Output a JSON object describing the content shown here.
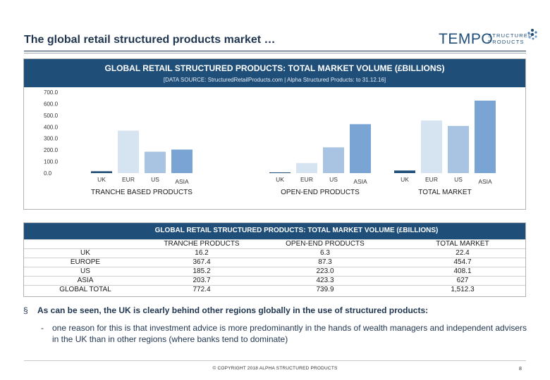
{
  "page": {
    "title": "The global retail structured products market …",
    "logo": {
      "word": "TEMPO",
      "sub_line1": "STRUCTURED",
      "sub_line2": "PRODUCTS"
    }
  },
  "chart_data": {
    "type": "bar",
    "title": "GLOBAL RETAIL STRUCTURED PRODUCTS: TOTAL MARKET VOLUME (£BILLIONS)",
    "source": "[DATA SOURCE: StructuredRetailProducts.com | Alpha Structured Products: to 31.12.16]",
    "ylim": [
      0,
      700
    ],
    "yticks": [
      "700.0",
      "600.0",
      "500.0",
      "400.0",
      "300.0",
      "200.0",
      "100.0",
      "0.0"
    ],
    "ytick_values": [
      700,
      600,
      500,
      400,
      300,
      200,
      100,
      0
    ],
    "categories": [
      "UK",
      "EUR",
      "US",
      "ASIA"
    ],
    "groups": [
      {
        "name": "TRANCHE BASED PRODUCTS",
        "values": [
          16.2,
          367.4,
          185.2,
          203.7
        ]
      },
      {
        "name": "OPEN-END PRODUCTS",
        "values": [
          6.3,
          87.3,
          223.0,
          423.3
        ]
      },
      {
        "name": "TOTAL MARKET",
        "values": [
          22.4,
          454.7,
          408.1,
          627
        ]
      }
    ],
    "colors": [
      "#1f4e79",
      "#d6e3f1",
      "#a9c4e2",
      "#7aa4d3"
    ]
  },
  "table": {
    "title": "GLOBAL RETAIL STRUCTURED PRODUCTS: TOTAL MARKET VOLUME (£BILLIONS)",
    "columns": [
      "TRANCHE PRODUCTS",
      "OPEN-END PRODUCTS",
      "TOTAL MARKET"
    ],
    "rows": [
      {
        "label": "UK",
        "values": [
          "16.2",
          "6.3",
          "22.4"
        ]
      },
      {
        "label": "EUROPE",
        "values": [
          "367.4",
          "87.3",
          "454.7"
        ]
      },
      {
        "label": "US",
        "values": [
          "185.2",
          "223.0",
          "408.1"
        ]
      },
      {
        "label": "ASIA",
        "values": [
          "203.7",
          "423.3",
          "627"
        ]
      },
      {
        "label": "GLOBAL TOTAL",
        "values": [
          "772.4",
          "739.9",
          "1,512.3"
        ]
      }
    ]
  },
  "bullets": {
    "marker": "§",
    "main": "As can be seen, the UK is clearly behind other regions globally in the use of structured products:",
    "sub_dash": "-",
    "sub": "one reason for this is that investment advice is more predominantly in the hands of wealth managers and independent advisers in the UK than in other regions (where banks tend to dominate)"
  },
  "footer": {
    "copyright": "© COPYRIGHT 2018 ALPHA STRUCTURED PRODUCTS",
    "page_number": "8"
  }
}
